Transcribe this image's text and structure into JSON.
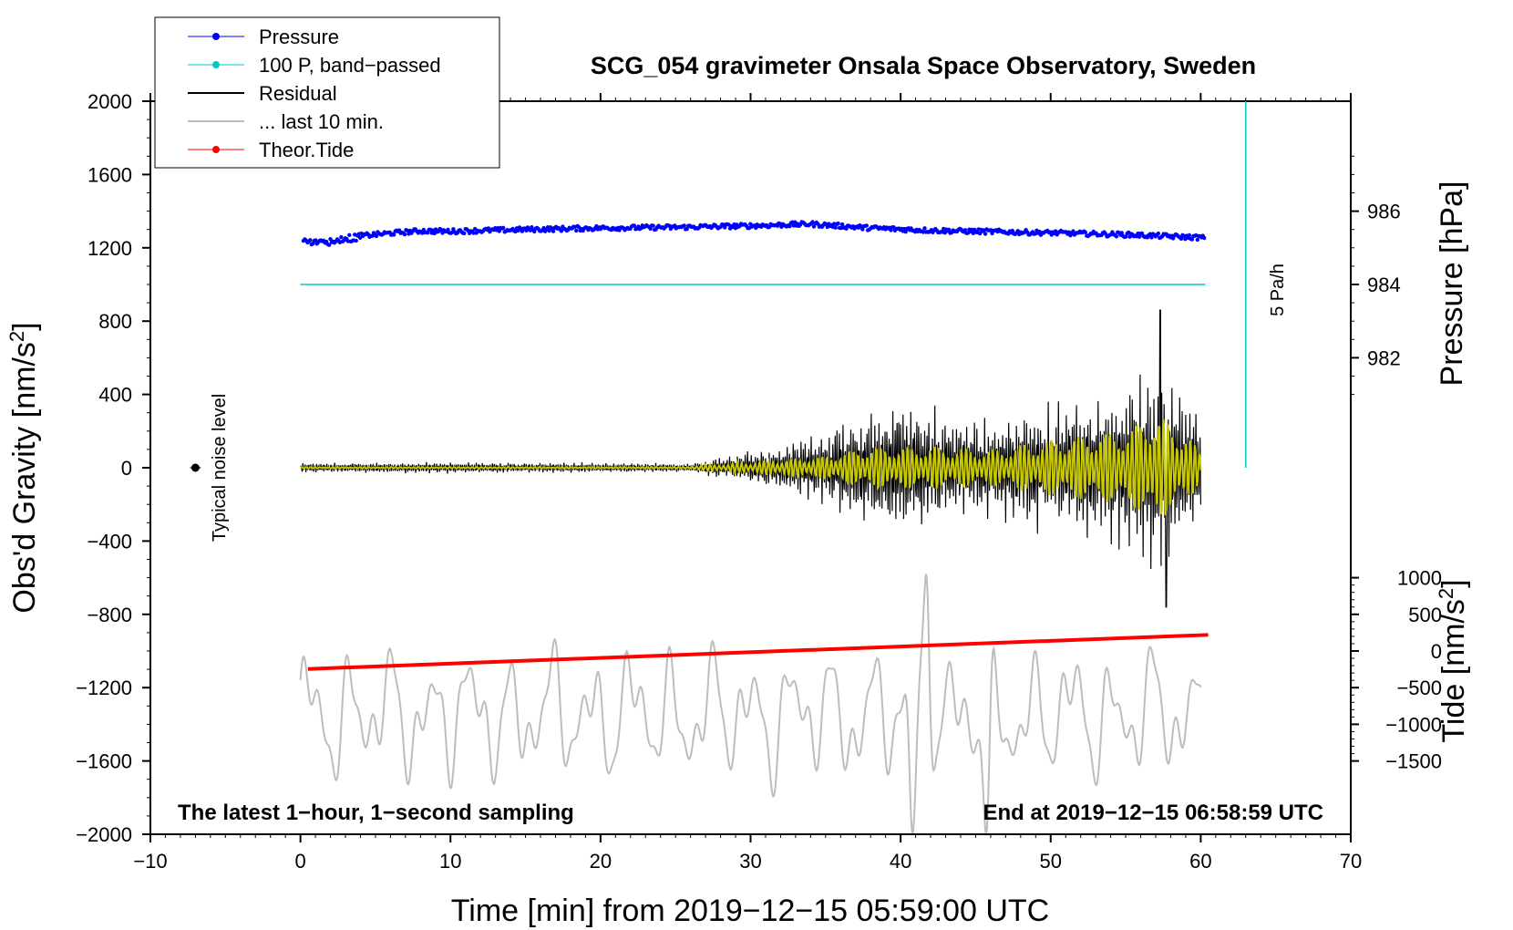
{
  "chart_data": {
    "type": "scatter",
    "title": "SCG_054 gravimeter Onsala Space Observatory, Sweden",
    "xlabel": "Time [min] from 2019−12−15 05:59:00 UTC",
    "ylabel_left": "Obs'd Gravity [nm/s",
    "ylabel_left_sup": "2",
    "ylabel_left_end": "]",
    "ylabel_right_top": "Pressure [hPa]",
    "ylabel_right_bottom": "Tide [nm/s",
    "ylabel_right_bottom_sup": "2",
    "ylabel_right_bottom_end": "]",
    "xlim": [
      -10,
      70
    ],
    "ylim": [
      -2000,
      2000
    ],
    "xticks": [
      "−10",
      "0",
      "10",
      "20",
      "30",
      "40",
      "50",
      "60",
      "70"
    ],
    "yticks_left": [
      "2000",
      "1600",
      "1200",
      "800",
      "400",
      "0",
      "−400",
      "−800",
      "−1200",
      "−1600",
      "−2000"
    ],
    "pressure_ticks": [
      {
        "label": "986",
        "value": 986
      },
      {
        "label": "984",
        "value": 984
      },
      {
        "label": "982",
        "value": 982
      }
    ],
    "tide_ticks": [
      {
        "label": "1000",
        "value": 1000
      },
      {
        "label": "500",
        "value": 500
      },
      {
        "label": "0",
        "value": 0
      },
      {
        "label": "−500",
        "value": -500
      },
      {
        "label": "−1000",
        "value": -1000
      },
      {
        "label": "−1500",
        "value": -1500
      }
    ],
    "pressure_axis": {
      "gravity_at_984": 1000,
      "gravity_per_hpa": 200
    },
    "tide_axis": {
      "gravity_at_0": -1000,
      "gravity_per_unit": 0.4
    },
    "legend": [
      {
        "label": "Pressure",
        "color": "#0000ff",
        "style": "line-dot"
      },
      {
        "label": "100 P, band−passed",
        "color": "#00c8c8",
        "style": "line-dot"
      },
      {
        "label": "Residual",
        "color": "#000000",
        "style": "line"
      },
      {
        "label": "... last 10 min.",
        "color": "#bdbdbd",
        "style": "line"
      },
      {
        "label": "Theor.Tide",
        "color": "#ff0000",
        "style": "line-dot"
      }
    ],
    "series": [
      {
        "name": "Pressure",
        "color": "#0000ff",
        "x": [
          0,
          2,
          4,
          6,
          8,
          10,
          15,
          20,
          25,
          30,
          34,
          38,
          42,
          46,
          50,
          55,
          60.3
        ],
        "y": [
          1240,
          1238,
          1265,
          1280,
          1292,
          1290,
          1300,
          1308,
          1312,
          1320,
          1330,
          1308,
          1295,
          1288,
          1282,
          1272,
          1255
        ]
      },
      {
        "name": "100 P, band-passed",
        "color": "#00c8c8",
        "x": [
          0,
          60.3
        ],
        "y": [
          1000,
          1000
        ]
      },
      {
        "name": "Theor.Tide",
        "color": "#ff0000",
        "x": [
          0.5,
          60.5
        ],
        "y": [
          -1098,
          -912
        ]
      },
      {
        "name": "Residual",
        "color": "#000000",
        "envelope_x": [
          0,
          10,
          20,
          26,
          30,
          34,
          38,
          40,
          42,
          45,
          50,
          55,
          57,
          59,
          60
        ],
        "envelope_amp": [
          25,
          28,
          25,
          20,
          90,
          170,
          300,
          380,
          300,
          240,
          330,
          420,
          530,
          400,
          300
        ],
        "peak_min": [
          57.3,
          57.7
        ],
        "peak_value": [
          860,
          -760
        ]
      },
      {
        "name": "Yellow filtered",
        "color": "#c8c800",
        "envelope_x": [
          26,
          30,
          35,
          38,
          42,
          46,
          50,
          55,
          57,
          59,
          60
        ],
        "envelope_amp": [
          10,
          30,
          60,
          110,
          110,
          90,
          140,
          200,
          300,
          180,
          80
        ]
      },
      {
        "name": "... last 10 min.",
        "color": "#bdbdbd",
        "center": -1350,
        "amplitude": 400,
        "peaks_x": [
          40.8,
          41.7,
          45.7
        ],
        "peaks_y": [
          -2000,
          -580,
          -2000
        ]
      }
    ],
    "noise_marker": {
      "x": -7,
      "y": 0,
      "label": "Typical noise level"
    },
    "annotation_5pah": {
      "label": "5 Pa/h",
      "x": 63,
      "y_top": 2000,
      "y_bottom": 0
    },
    "note_left": "The latest 1−hour, 1−second sampling",
    "note_right": "End at 2019−12−15 06:58:59 UTC"
  }
}
